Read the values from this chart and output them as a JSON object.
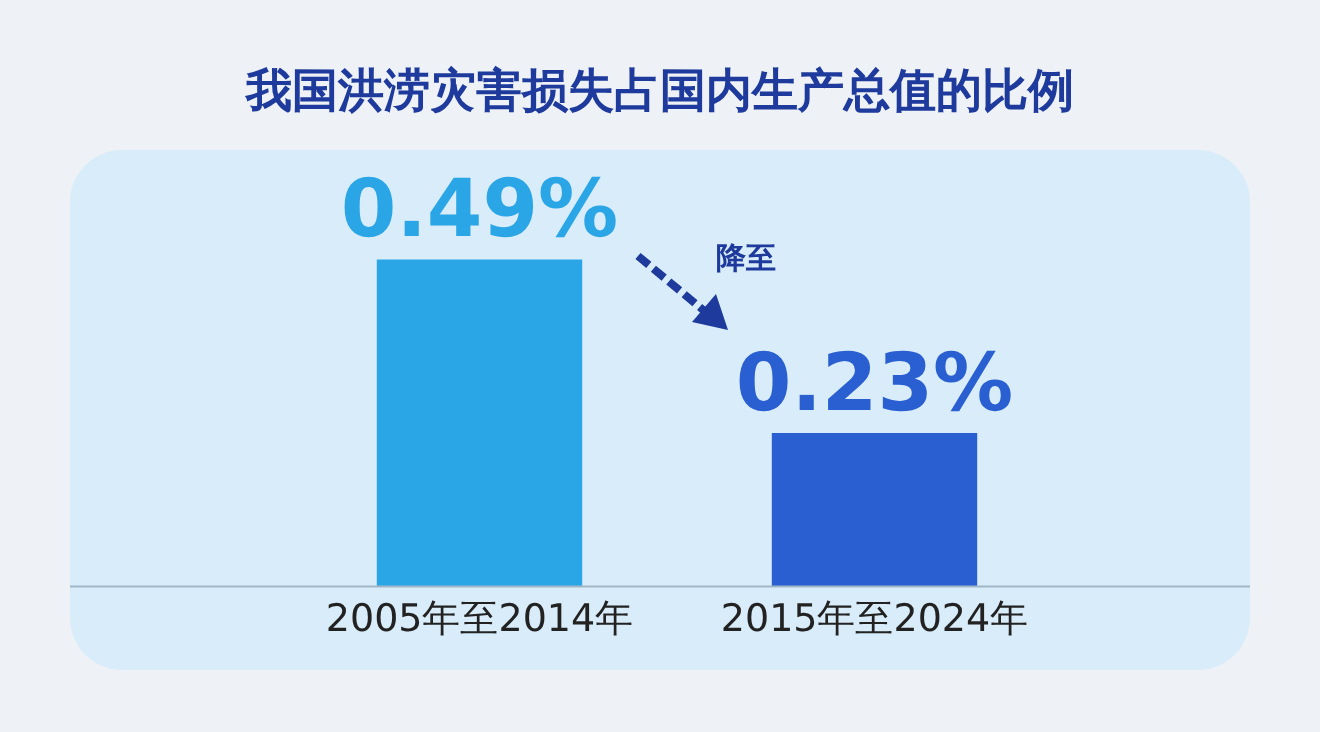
{
  "chart_data": {
    "type": "bar",
    "title": "我国洪涝灾害损失占国内生产总值的比例",
    "categories": [
      "2005年至2014年",
      "2015年至2024年"
    ],
    "values": [
      0.49,
      0.23
    ],
    "colors": [
      "#2aa6e6",
      "#2a5fd2"
    ],
    "value_labels": [
      "0.49%",
      "0.23%"
    ],
    "tick_labels": "x",
    "grid": false,
    "legend": false,
    "annotations": [
      "降至"
    ]
  }
}
